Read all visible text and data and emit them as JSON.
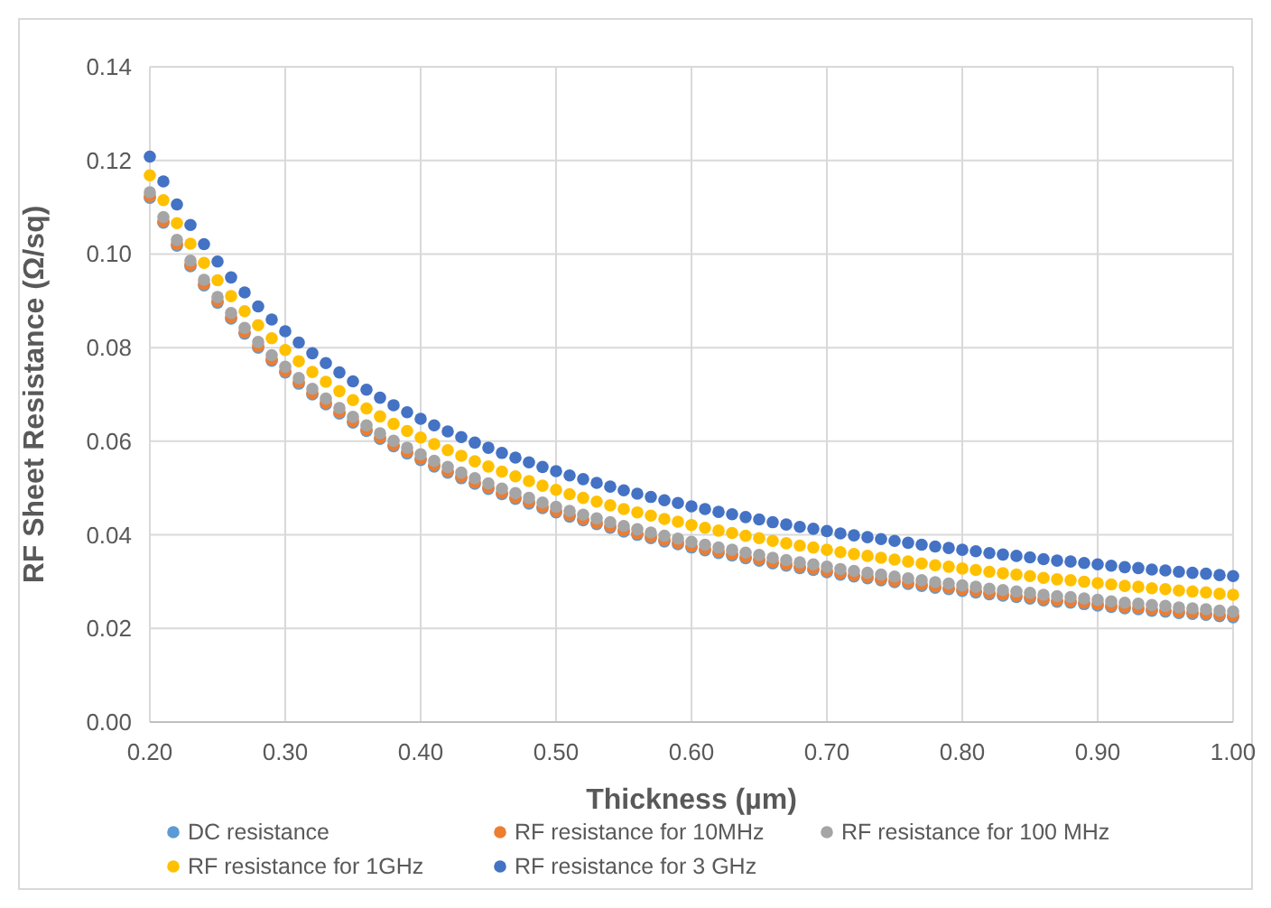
{
  "chart_data": {
    "type": "scatter",
    "xlabel": "Thickness (µm)",
    "ylabel": "RF Sheet Resistance (Ω/sq)",
    "x": [
      0.2,
      0.21,
      0.22,
      0.23,
      0.24,
      0.25,
      0.26,
      0.27,
      0.28,
      0.29,
      0.3,
      0.31,
      0.32,
      0.33,
      0.34,
      0.35,
      0.36,
      0.37,
      0.38,
      0.39,
      0.4,
      0.41,
      0.42,
      0.43,
      0.44,
      0.45,
      0.46,
      0.47,
      0.48,
      0.49,
      0.5,
      0.51,
      0.52,
      0.53,
      0.54,
      0.55,
      0.56,
      0.57,
      0.58,
      0.59,
      0.6,
      0.61,
      0.62,
      0.63,
      0.64,
      0.65,
      0.66,
      0.67,
      0.68,
      0.69,
      0.7,
      0.71,
      0.72,
      0.73,
      0.74,
      0.75,
      0.76,
      0.77,
      0.78,
      0.79,
      0.8,
      0.81,
      0.82,
      0.83,
      0.84,
      0.85,
      0.86,
      0.87,
      0.88,
      0.89,
      0.9,
      0.91,
      0.92,
      0.93,
      0.94,
      0.95,
      0.96,
      0.97,
      0.98,
      0.99,
      1.0
    ],
    "series": [
      {
        "name": "DC resistance",
        "color": "#5b9bd5",
        "values": [
          0.112,
          0.1067,
          0.1018,
          0.0974,
          0.0933,
          0.0896,
          0.0862,
          0.083,
          0.08,
          0.0772,
          0.0747,
          0.0723,
          0.07,
          0.0679,
          0.0659,
          0.064,
          0.0622,
          0.0605,
          0.0589,
          0.0574,
          0.056,
          0.0546,
          0.0533,
          0.0521,
          0.0509,
          0.0498,
          0.0487,
          0.0477,
          0.0467,
          0.0457,
          0.0448,
          0.0439,
          0.0431,
          0.0423,
          0.0415,
          0.0407,
          0.04,
          0.0393,
          0.0386,
          0.038,
          0.0373,
          0.0367,
          0.0361,
          0.0356,
          0.035,
          0.0345,
          0.0339,
          0.0334,
          0.0329,
          0.0325,
          0.032,
          0.0315,
          0.0311,
          0.0307,
          0.0303,
          0.0299,
          0.0295,
          0.0291,
          0.0287,
          0.0284,
          0.028,
          0.0277,
          0.0273,
          0.027,
          0.0267,
          0.0264,
          0.026,
          0.0257,
          0.0255,
          0.0252,
          0.0249,
          0.0246,
          0.0243,
          0.0241,
          0.0238,
          0.0236,
          0.0233,
          0.0231,
          0.0229,
          0.0226,
          0.0224
        ]
      },
      {
        "name": "RF resistance for 10MHz",
        "color": "#ed7d31",
        "values": [
          0.1123,
          0.107,
          0.1021,
          0.0977,
          0.0936,
          0.0899,
          0.0865,
          0.0833,
          0.0803,
          0.0775,
          0.075,
          0.0726,
          0.0703,
          0.0682,
          0.0662,
          0.0643,
          0.0625,
          0.0608,
          0.0592,
          0.0577,
          0.0563,
          0.0549,
          0.0536,
          0.0524,
          0.0512,
          0.0501,
          0.049,
          0.048,
          0.047,
          0.046,
          0.0451,
          0.0442,
          0.0434,
          0.0426,
          0.0418,
          0.041,
          0.0403,
          0.0396,
          0.0389,
          0.0383,
          0.0376,
          0.037,
          0.0364,
          0.0359,
          0.0353,
          0.0348,
          0.0342,
          0.0337,
          0.0332,
          0.0328,
          0.0323,
          0.0318,
          0.0314,
          0.031,
          0.0306,
          0.0302,
          0.0298,
          0.0294,
          0.029,
          0.0287,
          0.0283,
          0.028,
          0.0276,
          0.0273,
          0.027,
          0.0267,
          0.0263,
          0.026,
          0.0258,
          0.0255,
          0.0252,
          0.0249,
          0.0246,
          0.0244,
          0.0241,
          0.0239,
          0.0236,
          0.0234,
          0.0232,
          0.0229,
          0.0227
        ]
      },
      {
        "name": "RF resistance for 100 MHz",
        "color": "#a5a5a5",
        "values": [
          0.1132,
          0.1079,
          0.103,
          0.0986,
          0.0945,
          0.0908,
          0.0874,
          0.0842,
          0.0812,
          0.0784,
          0.0759,
          0.0735,
          0.0712,
          0.0691,
          0.0671,
          0.0652,
          0.0634,
          0.0617,
          0.0601,
          0.0586,
          0.0572,
          0.0558,
          0.0545,
          0.0533,
          0.0521,
          0.051,
          0.0499,
          0.0489,
          0.0479,
          0.0469,
          0.046,
          0.0451,
          0.0443,
          0.0435,
          0.0427,
          0.0419,
          0.0412,
          0.0405,
          0.0398,
          0.0392,
          0.0385,
          0.0379,
          0.0373,
          0.0368,
          0.0362,
          0.0357,
          0.0351,
          0.0346,
          0.0341,
          0.0337,
          0.0332,
          0.0327,
          0.0323,
          0.0319,
          0.0315,
          0.0311,
          0.0307,
          0.0303,
          0.0299,
          0.0296,
          0.0292,
          0.0289,
          0.0285,
          0.0282,
          0.0279,
          0.0276,
          0.0272,
          0.0269,
          0.0267,
          0.0264,
          0.0261,
          0.0258,
          0.0255,
          0.0253,
          0.025,
          0.0248,
          0.0245,
          0.0243,
          0.0241,
          0.0238,
          0.0236
        ]
      },
      {
        "name": "RF resistance for 1GHz",
        "color": "#ffc000",
        "values": [
          0.1168,
          0.1115,
          0.1066,
          0.1022,
          0.0981,
          0.0944,
          0.091,
          0.0878,
          0.0848,
          0.082,
          0.0795,
          0.0771,
          0.0748,
          0.0727,
          0.0707,
          0.0688,
          0.067,
          0.0653,
          0.0637,
          0.0622,
          0.0608,
          0.0594,
          0.0581,
          0.0569,
          0.0557,
          0.0546,
          0.0535,
          0.0525,
          0.0515,
          0.0505,
          0.0496,
          0.0487,
          0.0479,
          0.0471,
          0.0463,
          0.0455,
          0.0448,
          0.0441,
          0.0434,
          0.0428,
          0.0421,
          0.0415,
          0.0409,
          0.0404,
          0.0398,
          0.0393,
          0.0387,
          0.0382,
          0.0377,
          0.0373,
          0.0368,
          0.0363,
          0.0359,
          0.0355,
          0.0351,
          0.0347,
          0.0343,
          0.0339,
          0.0335,
          0.0332,
          0.0328,
          0.0325,
          0.0321,
          0.0318,
          0.0315,
          0.0312,
          0.0308,
          0.0305,
          0.0303,
          0.03,
          0.0297,
          0.0294,
          0.0291,
          0.0289,
          0.0286,
          0.0284,
          0.0281,
          0.0279,
          0.0277,
          0.0274,
          0.0272
        ]
      },
      {
        "name": "RF resistance for 3 GHz",
        "color": "#4472c4",
        "values": [
          0.1208,
          0.1155,
          0.1106,
          0.1062,
          0.1021,
          0.0984,
          0.095,
          0.0918,
          0.0888,
          0.086,
          0.0835,
          0.0811,
          0.0788,
          0.0767,
          0.0747,
          0.0728,
          0.071,
          0.0693,
          0.0677,
          0.0662,
          0.0648,
          0.0634,
          0.0621,
          0.0609,
          0.0597,
          0.0586,
          0.0575,
          0.0565,
          0.0555,
          0.0545,
          0.0536,
          0.0527,
          0.0519,
          0.0511,
          0.0503,
          0.0495,
          0.0488,
          0.0481,
          0.0474,
          0.0468,
          0.0461,
          0.0455,
          0.0449,
          0.0444,
          0.0438,
          0.0433,
          0.0427,
          0.0422,
          0.0417,
          0.0413,
          0.0408,
          0.0403,
          0.0399,
          0.0395,
          0.0391,
          0.0387,
          0.0383,
          0.0379,
          0.0375,
          0.0372,
          0.0368,
          0.0365,
          0.0361,
          0.0358,
          0.0355,
          0.0352,
          0.0348,
          0.0345,
          0.0343,
          0.034,
          0.0337,
          0.0334,
          0.0331,
          0.0329,
          0.0326,
          0.0324,
          0.0321,
          0.0319,
          0.0317,
          0.0314,
          0.0312
        ]
      }
    ],
    "xlim": [
      0.2,
      1.0
    ],
    "xticks": [
      {
        "value": 0.2,
        "label": "0.20"
      },
      {
        "value": 0.3,
        "label": "0.30"
      },
      {
        "value": 0.4,
        "label": "0.40"
      },
      {
        "value": 0.5,
        "label": "0.50"
      },
      {
        "value": 0.6,
        "label": "0.60"
      },
      {
        "value": 0.7,
        "label": "0.70"
      },
      {
        "value": 0.8,
        "label": "0.80"
      },
      {
        "value": 0.9,
        "label": "0.90"
      },
      {
        "value": 1.0,
        "label": "1.00"
      }
    ],
    "ylim": [
      0,
      0.14
    ],
    "yticks": [
      {
        "value": 0,
        "label": "0.00"
      },
      {
        "value": 0.02,
        "label": "0.02"
      },
      {
        "value": 0.04,
        "label": "0.04"
      },
      {
        "value": 0.06,
        "label": "0.06"
      },
      {
        "value": 0.08,
        "label": "0.08"
      },
      {
        "value": 0.1,
        "label": "0.10"
      },
      {
        "value": 0.12,
        "label": "0.12"
      },
      {
        "value": 0.14,
        "label": "0.14"
      }
    ],
    "grid": true,
    "legend": "bottom",
    "marker": "circle"
  }
}
